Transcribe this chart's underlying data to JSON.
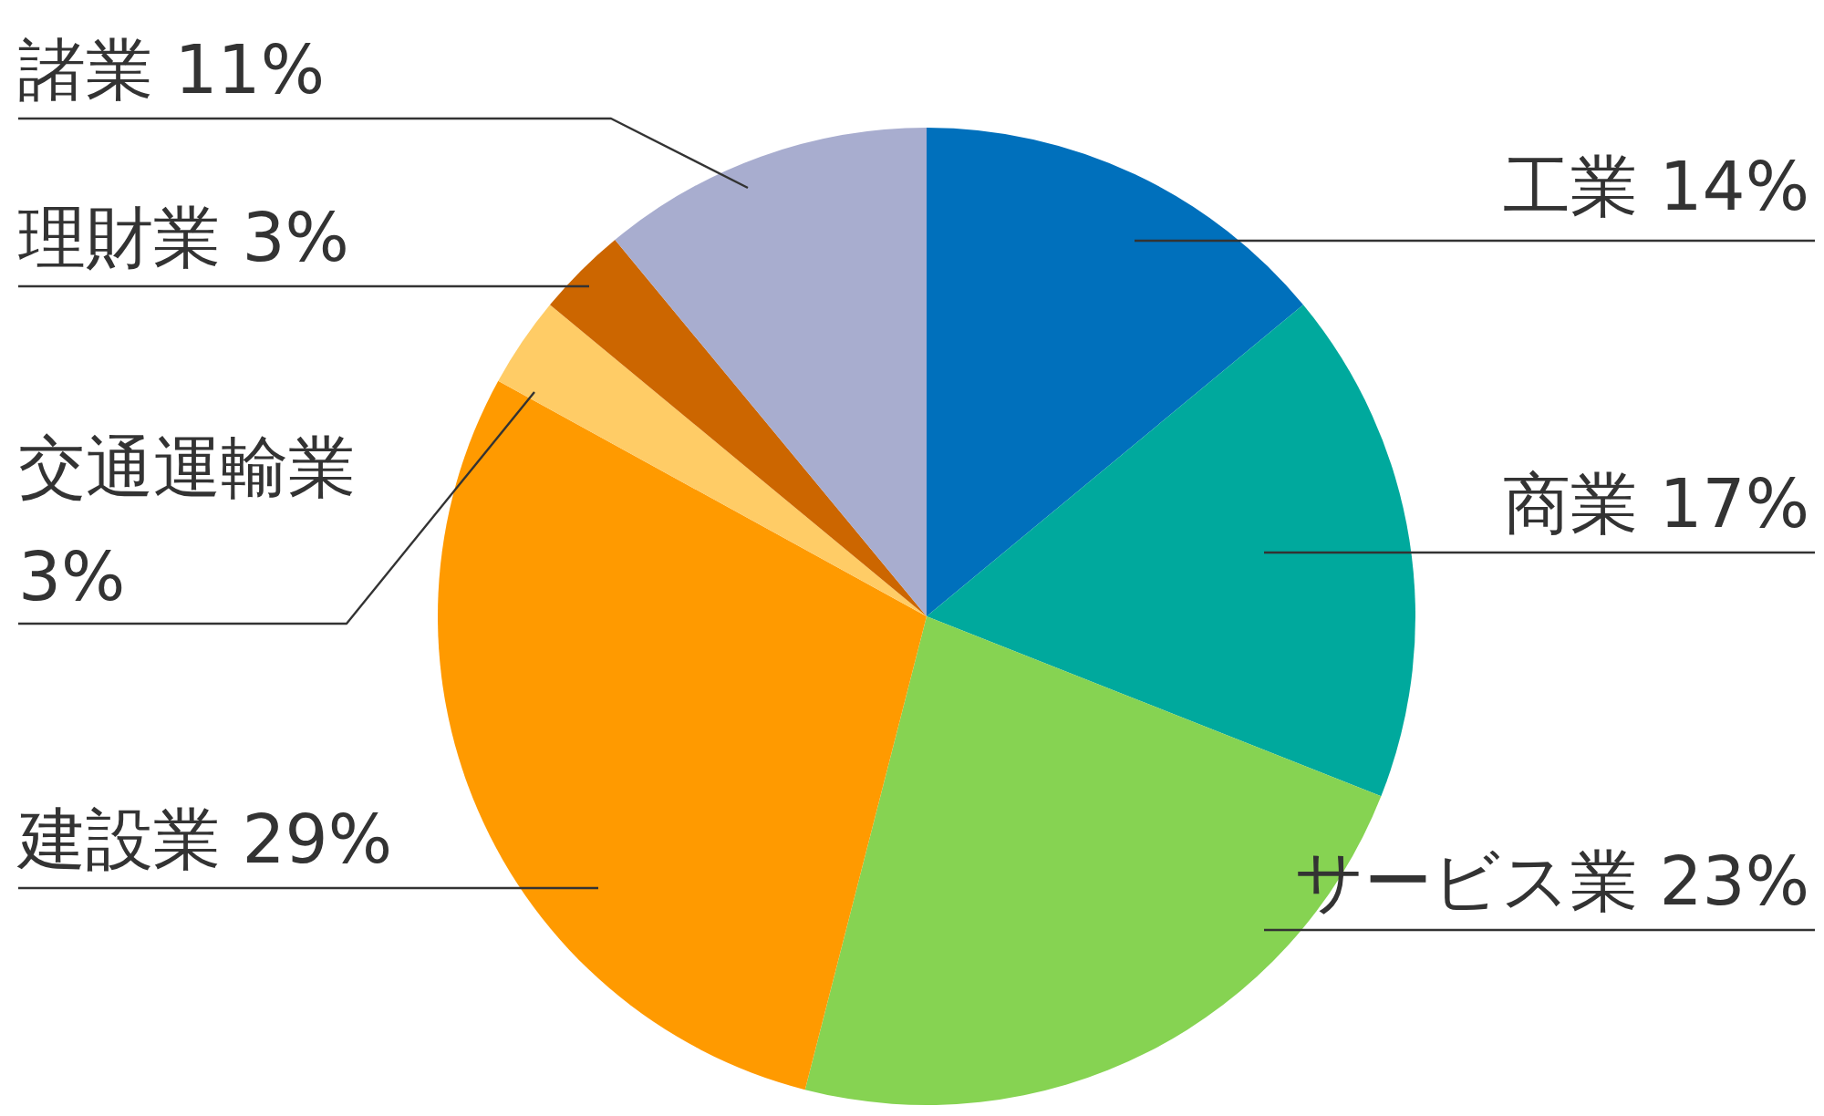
{
  "chart_data": {
    "type": "pie",
    "categories": [
      "工業",
      "商業",
      "サービス業",
      "建設業",
      "交通運輸業",
      "理財業",
      "諸業"
    ],
    "values": [
      14,
      17,
      23,
      29,
      3,
      3,
      11
    ],
    "value_labels": [
      "14%",
      "17%",
      "23%",
      "29%",
      "3%",
      "3%",
      "11%"
    ],
    "colors": [
      "#0070bc",
      "#00a99d",
      "#86d352",
      "#ff9a00",
      "#ffcc66",
      "#cc6600",
      "#a8adcf"
    ]
  }
}
